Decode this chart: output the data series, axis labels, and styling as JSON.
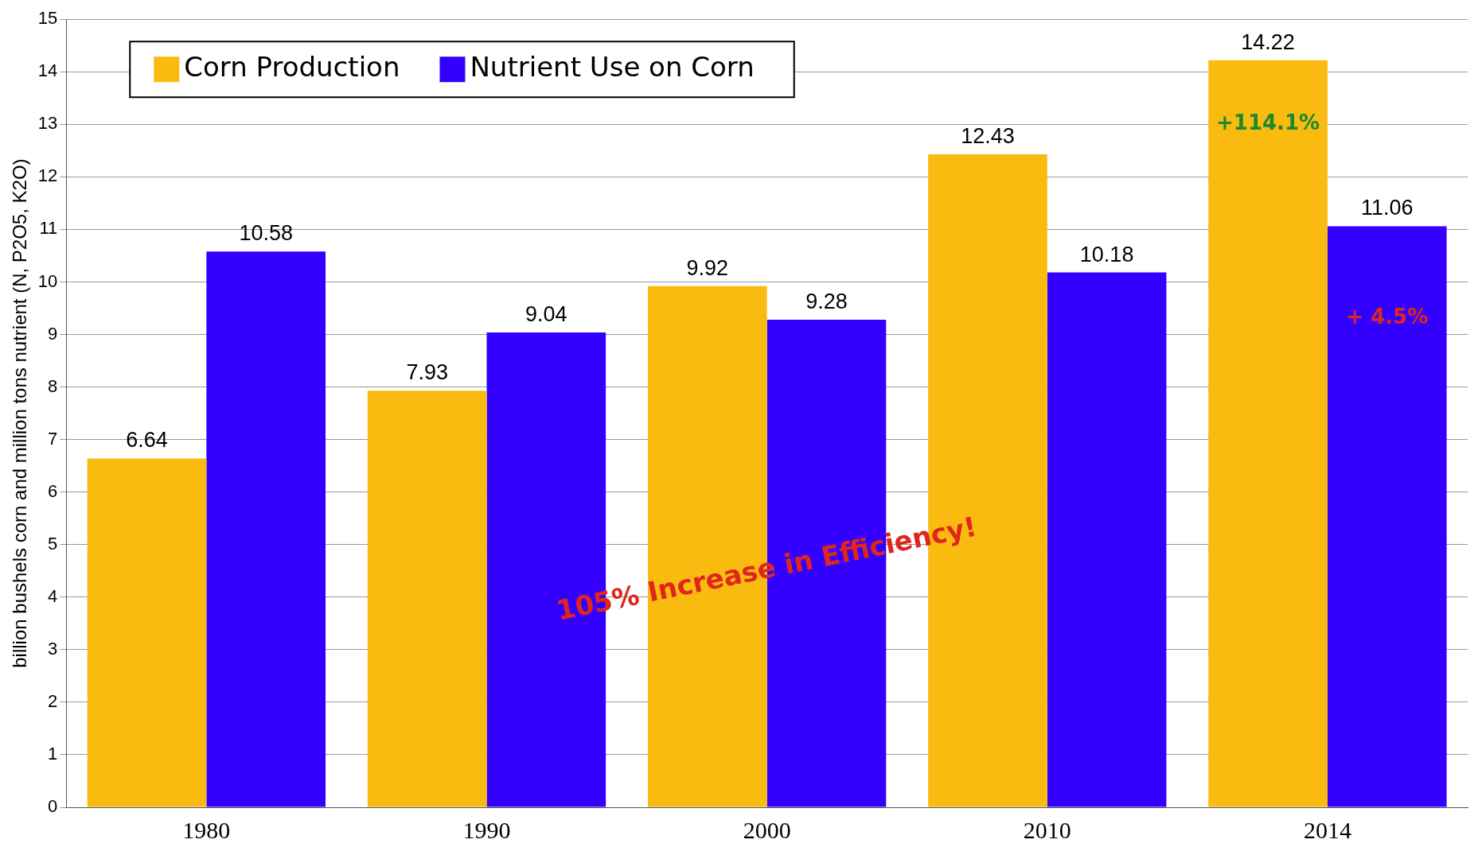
{
  "chart_data": {
    "type": "bar",
    "ylabel": "billion bushels corn and million tons nutrient (N, P2O5, K2O)",
    "categories": [
      "1980",
      "1990",
      "2000",
      "2010",
      "2014"
    ],
    "series": [
      {
        "name": "Corn Production",
        "color": "#f9bb10",
        "values": [
          6.64,
          7.93,
          9.92,
          12.43,
          14.22
        ]
      },
      {
        "name": "Nutrient Use on Corn",
        "color": "#3300ff",
        "values": [
          10.58,
          9.04,
          9.28,
          10.18,
          11.06
        ]
      }
    ],
    "ylim": [
      0,
      15
    ],
    "yticks": [
      0,
      1,
      2,
      3,
      4,
      5,
      6,
      7,
      8,
      9,
      10,
      11,
      12,
      13,
      14,
      15
    ],
    "grid": "y",
    "legend": "top left",
    "data_labels": true,
    "annotations": [
      {
        "text": "+114.1%",
        "x": "2014",
        "y": 13
      },
      {
        "text": "+ 4.5%",
        "x": "2014",
        "y": 9.3
      },
      "105% Increase in Efficiency!"
    ]
  }
}
